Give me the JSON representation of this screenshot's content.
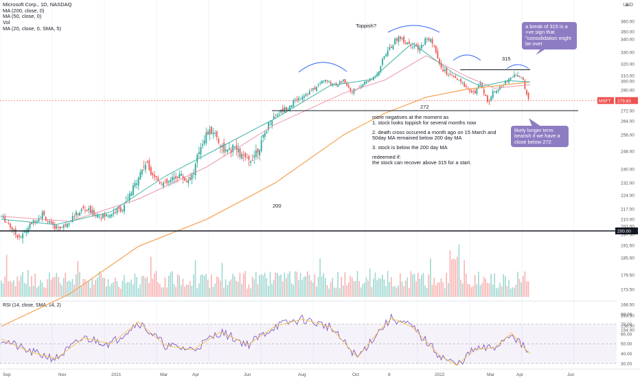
{
  "legend": {
    "title": "Microsoft Corp., 1D, NASDAQ",
    "ma200": "MA (200, close, 0)",
    "ma50": "MA (50, close, 0)",
    "vol": "Vol",
    "ma20": "MA (20, close, 0, SMA, 5)"
  },
  "header": {
    "currency": "USD",
    "bell_icon": "alert-icon"
  },
  "annotations": {
    "toppish": "Toppish?",
    "level_315": "315",
    "level_272": "272",
    "level_200": "200",
    "notes_line1": "more negatives at the moment as",
    "notes_line2": "1. stock looks toppish for several months now",
    "notes_line3": "2. death cross occurred a month ago on 15 March and",
    "notes_line4": "50day MA remained below 200 day MA",
    "notes_line5": "3. stock is below the 200 day MA",
    "notes_line6": "redeemed if:",
    "notes_line7": "the stock can recover above 315 for a start.",
    "callout_top": "a break of 315 is a +ve sign that \"consolidation might be over",
    "callout_bottom": "likely longer term bearish if we have a close below 272"
  },
  "price_badges": {
    "ticker": "MSFT",
    "last": "279.83",
    "level": "200.00"
  },
  "rsi_label": "RSI (14, close, SMA, 14, 2)",
  "colors": {
    "up": "#26a69a",
    "down": "#ef5350",
    "ma200": "#f7a55a",
    "ma50": "#e88aa0",
    "ma20": "#3fb4a6",
    "rsi": "#7e57c2",
    "rsi_ma": "#f3c44d",
    "callout": "#8e7cc3"
  },
  "chart_data": {
    "type": "candlestick",
    "symbol": "MSFT",
    "x_tick_labels": [
      "Sep",
      "Nov",
      "2021",
      "Mar",
      "Apr",
      "Jun",
      "Aug",
      "Oct",
      "8",
      "2022",
      "Mar",
      "Apr",
      "Jun"
    ],
    "price_axis": {
      "ticks": [
        360,
        350,
        340,
        330,
        320,
        310,
        300,
        290,
        280,
        272,
        264,
        256,
        248,
        240,
        232,
        224,
        217,
        210,
        203.5,
        197.5,
        191.5,
        185.5,
        179.5,
        173.5,
        168.5,
        163.5,
        158.5,
        154
      ],
      "tick_labels": [
        "360.00",
        "350.00",
        "340.00",
        "330.00",
        "320.00",
        "310.00",
        "300.00",
        "290.00",
        "280.00",
        "272.00",
        "264.00",
        "256.00",
        "248.00",
        "240.00",
        "232.00",
        "224.00",
        "217.00",
        "210.00",
        "203.50",
        "197.50",
        "191.50",
        "185.50",
        "179.50",
        "173.50",
        "168.50",
        "163.50",
        "158.50",
        "154.00"
      ]
    },
    "rsi_axis": {
      "ticks": [
        80,
        70,
        60,
        50,
        40,
        30
      ],
      "tick_labels": [
        "80.00",
        "70.00",
        "60.00",
        "50.00",
        "40.00",
        "30.00"
      ],
      "bands": [
        30,
        70
      ]
    },
    "horizontal_levels": [
      315,
      272,
      200
    ],
    "price_path": [
      [
        0,
        212
      ],
      [
        10,
        206
      ],
      [
        20,
        198
      ],
      [
        30,
        196
      ],
      [
        45,
        207
      ],
      [
        60,
        214
      ],
      [
        75,
        203
      ],
      [
        90,
        203
      ],
      [
        105,
        212
      ],
      [
        120,
        217
      ],
      [
        135,
        214
      ],
      [
        150,
        212
      ],
      [
        165,
        215
      ],
      [
        180,
        218
      ],
      [
        190,
        226
      ],
      [
        200,
        236
      ],
      [
        210,
        243
      ],
      [
        220,
        238
      ],
      [
        230,
        233
      ],
      [
        240,
        231
      ],
      [
        250,
        234
      ],
      [
        260,
        237
      ],
      [
        270,
        233
      ],
      [
        280,
        237
      ],
      [
        290,
        250
      ],
      [
        300,
        257
      ],
      [
        310,
        258
      ],
      [
        320,
        251
      ],
      [
        330,
        247
      ],
      [
        340,
        250
      ],
      [
        350,
        246
      ],
      [
        360,
        243
      ],
      [
        370,
        247
      ],
      [
        380,
        252
      ],
      [
        390,
        262
      ],
      [
        400,
        269
      ],
      [
        410,
        272
      ],
      [
        420,
        276
      ],
      [
        430,
        280
      ],
      [
        440,
        285
      ],
      [
        450,
        288
      ],
      [
        460,
        293
      ],
      [
        470,
        302
      ],
      [
        480,
        298
      ],
      [
        490,
        296
      ],
      [
        500,
        302
      ],
      [
        510,
        289
      ],
      [
        520,
        290
      ],
      [
        530,
        298
      ],
      [
        540,
        303
      ],
      [
        550,
        313
      ],
      [
        560,
        328
      ],
      [
        570,
        335
      ],
      [
        580,
        343
      ],
      [
        590,
        338
      ],
      [
        600,
        336
      ],
      [
        610,
        331
      ],
      [
        620,
        341
      ],
      [
        630,
        338
      ],
      [
        640,
        318
      ],
      [
        650,
        312
      ],
      [
        660,
        307
      ],
      [
        670,
        299
      ],
      [
        680,
        293
      ],
      [
        690,
        287
      ],
      [
        700,
        297
      ],
      [
        710,
        278
      ],
      [
        720,
        290
      ],
      [
        730,
        293
      ],
      [
        740,
        303
      ],
      [
        750,
        312
      ],
      [
        760,
        306
      ],
      [
        765,
        290
      ],
      [
        772,
        280
      ]
    ],
    "ma200_path": [
      [
        0,
        158
      ],
      [
        100,
        172
      ],
      [
        200,
        191
      ],
      [
        300,
        210
      ],
      [
        400,
        232
      ],
      [
        500,
        256
      ],
      [
        560,
        270
      ],
      [
        620,
        283
      ],
      [
        680,
        291
      ],
      [
        772,
        299
      ]
    ],
    "ma50_path": [
      [
        0,
        212
      ],
      [
        100,
        208
      ],
      [
        200,
        222
      ],
      [
        300,
        241
      ],
      [
        400,
        262
      ],
      [
        500,
        287
      ],
      [
        560,
        302
      ],
      [
        620,
        327
      ],
      [
        680,
        308
      ],
      [
        720,
        292
      ],
      [
        772,
        296
      ]
    ],
    "ma20_path": [
      [
        0,
        210
      ],
      [
        80,
        205
      ],
      [
        160,
        215
      ],
      [
        240,
        236
      ],
      [
        320,
        250
      ],
      [
        400,
        266
      ],
      [
        480,
        295
      ],
      [
        540,
        303
      ],
      [
        600,
        337
      ],
      [
        660,
        312
      ],
      [
        700,
        294
      ],
      [
        740,
        301
      ],
      [
        772,
        299
      ]
    ],
    "rsi_path": [
      [
        0,
        55
      ],
      [
        40,
        42
      ],
      [
        80,
        35
      ],
      [
        120,
        56
      ],
      [
        160,
        50
      ],
      [
        200,
        72
      ],
      [
        240,
        48
      ],
      [
        280,
        44
      ],
      [
        320,
        62
      ],
      [
        360,
        49
      ],
      [
        400,
        68
      ],
      [
        440,
        75
      ],
      [
        480,
        67
      ],
      [
        520,
        36
      ],
      [
        550,
        62
      ],
      [
        570,
        76
      ],
      [
        600,
        67
      ],
      [
        640,
        38
      ],
      [
        665,
        28
      ],
      [
        690,
        44
      ],
      [
        720,
        46
      ],
      [
        745,
        61
      ],
      [
        760,
        48
      ],
      [
        772,
        40
      ]
    ]
  }
}
